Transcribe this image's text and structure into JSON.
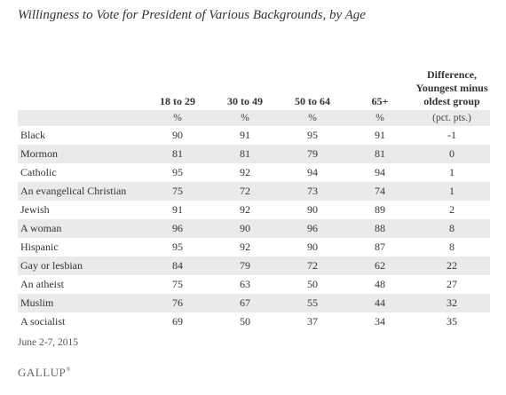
{
  "chart_data": {
    "type": "table",
    "title": "Willingness to Vote for President of Various Backgrounds, by Age",
    "columns": [
      "18 to 29",
      "30 to 49",
      "50 to 64",
      "65+",
      "Difference, Youngest minus oldest group"
    ],
    "units": [
      "%",
      "%",
      "%",
      "%",
      "(pct. pts.)"
    ],
    "rows": [
      {
        "label": "Black",
        "values": [
          "90",
          "91",
          "95",
          "91",
          "-1"
        ]
      },
      {
        "label": "Mormon",
        "values": [
          "81",
          "81",
          "79",
          "81",
          "0"
        ]
      },
      {
        "label": "Catholic",
        "values": [
          "95",
          "92",
          "94",
          "94",
          "1"
        ]
      },
      {
        "label": "An evangelical Christian",
        "values": [
          "75",
          "72",
          "73",
          "74",
          "1"
        ]
      },
      {
        "label": "Jewish",
        "values": [
          "91",
          "92",
          "90",
          "89",
          "2"
        ]
      },
      {
        "label": "A woman",
        "values": [
          "96",
          "90",
          "96",
          "88",
          "8"
        ]
      },
      {
        "label": "Hispanic",
        "values": [
          "95",
          "92",
          "90",
          "87",
          "8"
        ]
      },
      {
        "label": "Gay or lesbian",
        "values": [
          "84",
          "79",
          "72",
          "62",
          "22"
        ]
      },
      {
        "label": "An atheist",
        "values": [
          "75",
          "63",
          "50",
          "48",
          "27"
        ]
      },
      {
        "label": "Muslim",
        "values": [
          "76",
          "67",
          "55",
          "44",
          "32"
        ]
      },
      {
        "label": "A socialist",
        "values": [
          "69",
          "50",
          "37",
          "34",
          "35"
        ]
      }
    ]
  },
  "footnote": "June 2-7, 2015",
  "logo": {
    "text": "GALLUP",
    "mark": "®"
  }
}
